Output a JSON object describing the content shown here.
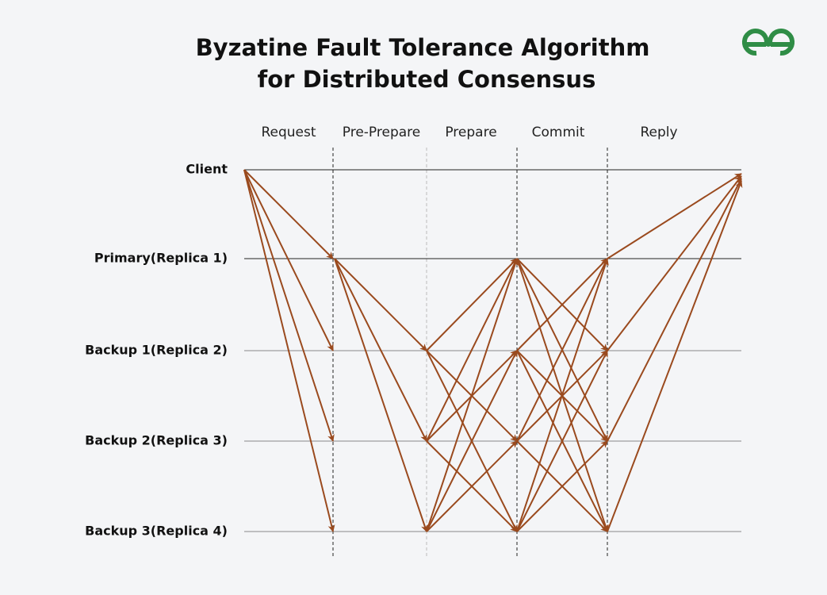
{
  "header": {
    "title": [
      "Byzatine Fault Tolerance Algorithm",
      "for Distributed Consensus"
    ]
  },
  "phases": [
    "Request",
    "Pre-Prepare",
    "Prepare",
    "Commit",
    "Reply"
  ],
  "nodes": [
    "Client",
    "Primary(Replica 1)",
    "Backup 1(Replica 2)",
    "Backup 2(Replica 3)",
    "Backup 3(Replica 4)"
  ]
}
